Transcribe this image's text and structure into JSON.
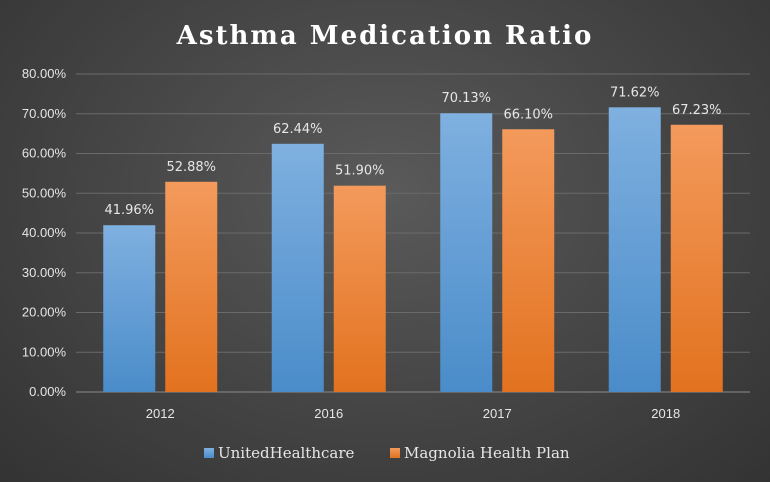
{
  "chart_data": {
    "type": "bar",
    "title": "Asthma Medication Ratio",
    "categories": [
      "2012",
      "2016",
      "2017",
      "2018"
    ],
    "series": [
      {
        "name": "UnitedHealthcare",
        "values": [
          41.96,
          62.44,
          70.13,
          71.62
        ],
        "labels": [
          "41.96%",
          "62.44%",
          "70.13%",
          "71.62%"
        ],
        "color": "#5b9bd5"
      },
      {
        "name": "Magnolia Health Plan",
        "values": [
          52.88,
          51.9,
          66.1,
          67.23
        ],
        "labels": [
          "52.88%",
          "51.90%",
          "66.10%",
          "67.23%"
        ],
        "color": "#ed7d31"
      }
    ],
    "ylim": [
      0,
      80
    ],
    "yticks": [
      "0.00%",
      "10.00%",
      "20.00%",
      "30.00%",
      "40.00%",
      "50.00%",
      "60.00%",
      "70.00%",
      "80.00%"
    ],
    "grid": true,
    "legend_position": "bottom",
    "xlabel": "",
    "ylabel": ""
  }
}
